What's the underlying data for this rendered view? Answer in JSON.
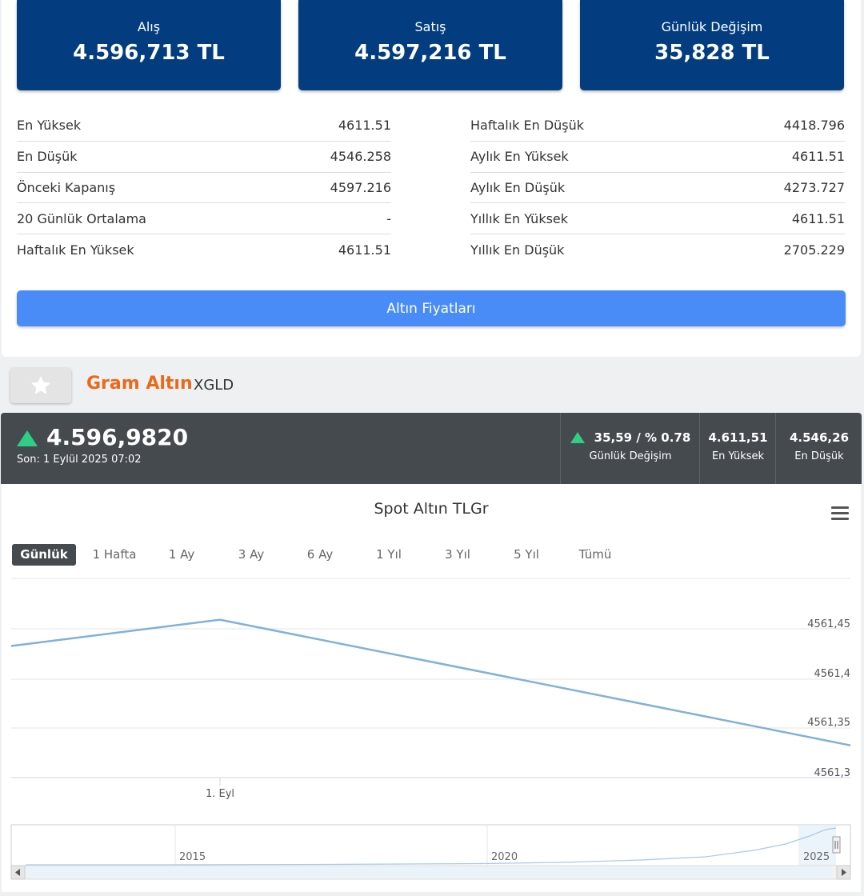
{
  "price_boxes": [
    {
      "label": "Alış",
      "value": "4.596,713 TL"
    },
    {
      "label": "Satış",
      "value": "4.597,216 TL"
    },
    {
      "label": "Günlük Değişim",
      "value": "35,828 TL"
    }
  ],
  "stats_left": [
    {
      "label": "En Yüksek",
      "value": "4611.51"
    },
    {
      "label": "En Düşük",
      "value": "4546.258"
    },
    {
      "label": "Önceki Kapanış",
      "value": "4597.216"
    },
    {
      "label": "20 Günlük Ortalama",
      "value": "-"
    },
    {
      "label": "Haftalık En Yüksek",
      "value": "4611.51"
    }
  ],
  "stats_right": [
    {
      "label": "Haftalık En Düşük",
      "value": "4418.796"
    },
    {
      "label": "Aylık En Yüksek",
      "value": "4611.51"
    },
    {
      "label": "Aylık En Düşük",
      "value": "4273.727"
    },
    {
      "label": "Yıllık En Yüksek",
      "value": "4611.51"
    },
    {
      "label": "Yıllık En Düşük",
      "value": "2705.229"
    }
  ],
  "gold_prices_button": "Altın Fiyatları",
  "asset": {
    "name": "Gram Altın",
    "code": "XGLD"
  },
  "quote": {
    "price": "4.596,9820",
    "last_update": "Son: 1 Eylül 2025 07:02",
    "change_value": "35,59 / % 0.78",
    "change_label": "Günlük Değişim",
    "high_value": "4.611,51",
    "high_label": "En Yüksek",
    "low_value": "4.546,26",
    "low_label": "En Düşük",
    "up_color": "#2ecf84"
  },
  "chart_data": {
    "type": "line",
    "title": "Spot Altın TLGr",
    "range_buttons": [
      "Günlük",
      "1 Hafta",
      "1 Ay",
      "3 Ay",
      "6 Ay",
      "1 Yıl",
      "3 Yıl",
      "5 Yıl",
      "Tümü"
    ],
    "selected_range": "Günlük",
    "x_tick_labels": [
      "1. Eyl"
    ],
    "y_ticks": [
      "4561,45",
      "4561,4",
      "4561,35",
      "4561,3"
    ],
    "ylim": [
      4561.3,
      4561.51
    ],
    "series": [
      {
        "values": [
          4561.455,
          4561.486,
          4561.338
        ]
      }
    ],
    "line_color": "#7fb1db",
    "navigator_labels": [
      "2015",
      "2020",
      "2025"
    ]
  }
}
